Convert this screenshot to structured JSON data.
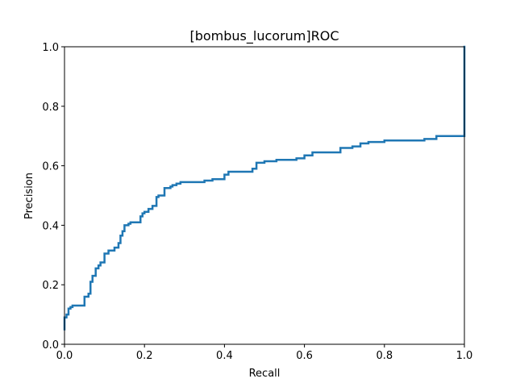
{
  "chart_data": {
    "type": "line",
    "title": "[bombus_lucorum]ROC",
    "xlabel": "Recall",
    "ylabel": "Precision",
    "xlim": [
      0.0,
      1.0
    ],
    "ylim": [
      0.0,
      1.0
    ],
    "x_ticks": [
      "0.0",
      "0.2",
      "0.4",
      "0.6",
      "0.8",
      "1.0"
    ],
    "y_ticks": [
      "0.0",
      "0.2",
      "0.4",
      "0.6",
      "0.8",
      "1.0"
    ],
    "grid": false,
    "legend": "none",
    "line_color": "#1f77b4",
    "series": [
      {
        "x": [
          0.0,
          0.0,
          0.005,
          0.005,
          0.01,
          0.01,
          0.015,
          0.015,
          0.02,
          0.02,
          0.05,
          0.05,
          0.06,
          0.06,
          0.065,
          0.065,
          0.07,
          0.07,
          0.078,
          0.078,
          0.085,
          0.085,
          0.09,
          0.09,
          0.1,
          0.1,
          0.11,
          0.11,
          0.125,
          0.125,
          0.135,
          0.135,
          0.14,
          0.14,
          0.145,
          0.145,
          0.15,
          0.15,
          0.16,
          0.16,
          0.165,
          0.165,
          0.19,
          0.19,
          0.195,
          0.195,
          0.2,
          0.2,
          0.21,
          0.21,
          0.22,
          0.22,
          0.23,
          0.23,
          0.235,
          0.235,
          0.25,
          0.25,
          0.265,
          0.265,
          0.27,
          0.27,
          0.28,
          0.28,
          0.29,
          0.29,
          0.32,
          0.32,
          0.35,
          0.35,
          0.37,
          0.37,
          0.4,
          0.4,
          0.41,
          0.41,
          0.42,
          0.42,
          0.47,
          0.47,
          0.48,
          0.48,
          0.5,
          0.5,
          0.53,
          0.53,
          0.58,
          0.58,
          0.6,
          0.6,
          0.62,
          0.62,
          0.69,
          0.69,
          0.72,
          0.72,
          0.74,
          0.74,
          0.76,
          0.76,
          0.8,
          0.8,
          0.9,
          0.9,
          0.93,
          0.93,
          1.0,
          1.0
        ],
        "y": [
          0.05,
          0.09,
          0.09,
          0.1,
          0.1,
          0.12,
          0.12,
          0.125,
          0.125,
          0.13,
          0.13,
          0.16,
          0.16,
          0.17,
          0.17,
          0.21,
          0.21,
          0.23,
          0.23,
          0.255,
          0.255,
          0.265,
          0.265,
          0.275,
          0.275,
          0.305,
          0.305,
          0.315,
          0.315,
          0.325,
          0.325,
          0.34,
          0.34,
          0.365,
          0.365,
          0.38,
          0.38,
          0.4,
          0.4,
          0.405,
          0.405,
          0.41,
          0.41,
          0.43,
          0.43,
          0.44,
          0.44,
          0.445,
          0.445,
          0.455,
          0.455,
          0.465,
          0.465,
          0.495,
          0.495,
          0.5,
          0.5,
          0.525,
          0.525,
          0.53,
          0.53,
          0.535,
          0.535,
          0.54,
          0.54,
          0.545,
          0.545,
          0.545,
          0.545,
          0.55,
          0.55,
          0.555,
          0.555,
          0.57,
          0.57,
          0.58,
          0.58,
          0.58,
          0.58,
          0.59,
          0.59,
          0.61,
          0.61,
          0.615,
          0.615,
          0.62,
          0.62,
          0.625,
          0.625,
          0.635,
          0.635,
          0.645,
          0.645,
          0.66,
          0.66,
          0.665,
          0.665,
          0.675,
          0.675,
          0.68,
          0.68,
          0.685,
          0.685,
          0.69,
          0.69,
          0.7,
          0.7,
          1.0
        ]
      }
    ]
  }
}
